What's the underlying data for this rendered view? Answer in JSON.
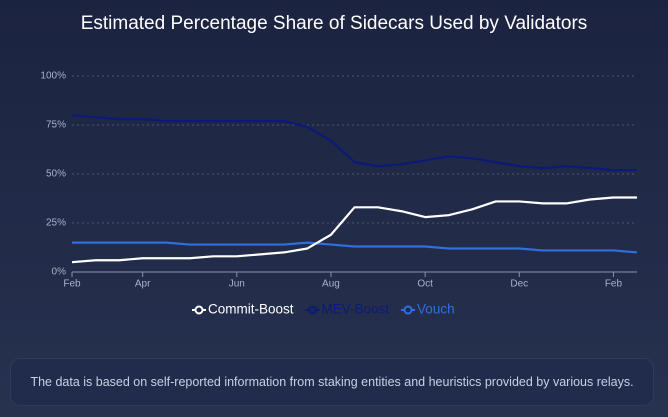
{
  "chart_data": {
    "type": "line",
    "title": "Estimated Percentage Share of Sidecars Used by Validators",
    "categories": [
      "Feb",
      null,
      null,
      "Apr",
      null,
      null,
      null,
      "Jun",
      null,
      null,
      null,
      "Aug",
      null,
      null,
      null,
      "Oct",
      null,
      null,
      null,
      "Dec",
      null,
      null,
      null,
      "Feb",
      null
    ],
    "series": [
      {
        "name": "Commit-Boost",
        "color": "#ffffff",
        "values": [
          5,
          6,
          6,
          7,
          7,
          7,
          8,
          8,
          9,
          10,
          12,
          19,
          33,
          33,
          31,
          28,
          29,
          32,
          36,
          36,
          35,
          35,
          37,
          38,
          38
        ]
      },
      {
        "name": "MEV-Boost",
        "color": "#0b1a78",
        "values": [
          80,
          79,
          78,
          78,
          77,
          77,
          77,
          77,
          77,
          77,
          74,
          67,
          56,
          54,
          55,
          57,
          59,
          58,
          56,
          54,
          53,
          54,
          53,
          52,
          52
        ]
      },
      {
        "name": "Vouch",
        "color": "#2f6fe0",
        "values": [
          15,
          15,
          15,
          15,
          15,
          14,
          14,
          14,
          14,
          14,
          15,
          14,
          13,
          13,
          13,
          13,
          12,
          12,
          12,
          12,
          11,
          11,
          11,
          11,
          10
        ]
      }
    ],
    "ylim": [
      0,
      100
    ],
    "yticks": [
      {
        "value": 0,
        "label": "0%"
      },
      {
        "value": 25,
        "label": "25%"
      },
      {
        "value": 50,
        "label": "50%"
      },
      {
        "value": 75,
        "label": "75%"
      },
      {
        "value": 100,
        "label": "100%"
      }
    ],
    "grid": true,
    "note": "The data is based on self-reported information from staking entities and heuristics provided by various relays."
  }
}
